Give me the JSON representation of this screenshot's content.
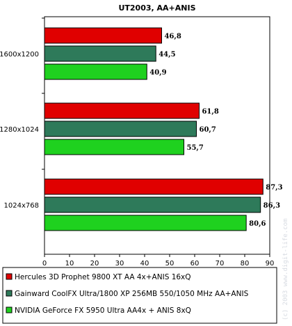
{
  "chart_data": {
    "type": "bar",
    "orientation": "horizontal",
    "title": "UT2003, AA+ANIS",
    "categories": [
      "1600x1200",
      "1280x1024",
      "1024x768"
    ],
    "series": [
      {
        "name": "Hercules 3D Prophet 9800 XT AA 4x+ANIS 16xQ",
        "color": "#e00000",
        "values": [
          46.8,
          61.8,
          87.3
        ]
      },
      {
        "name": "Gainward CoolFX Ultra/1800 XP 256MB 550/1050 MHz AA+ANIS",
        "color": "#2e7a5a",
        "values": [
          44.5,
          60.7,
          86.3
        ]
      },
      {
        "name": "NVIDIA GeForce FX 5950 Ultra AA4x + ANIS 8xQ",
        "color": "#1fd11f",
        "values": [
          40.9,
          55.7,
          80.6
        ]
      }
    ],
    "value_labels": [
      [
        "46,8",
        "44,5",
        "40,9"
      ],
      [
        "61,8",
        "60,7",
        "55,7"
      ],
      [
        "87,3",
        "86,3",
        "80,6"
      ]
    ],
    "xlim": [
      0,
      90
    ],
    "xticks": [
      "0",
      "10",
      "20",
      "30",
      "40",
      "50",
      "60",
      "70",
      "80",
      "90"
    ],
    "grid": false,
    "legend_position": "bottom"
  },
  "watermark": "(c) 2003 www.digit-life.com"
}
